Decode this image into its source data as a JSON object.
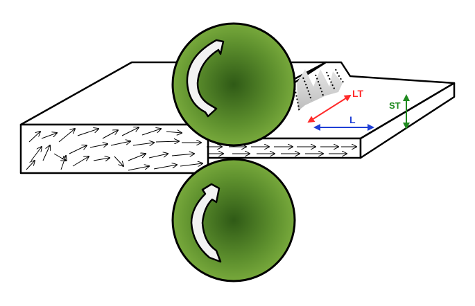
{
  "labels": {
    "lt": "LT",
    "l": "L",
    "st": "ST"
  },
  "colors": {
    "roller_light": "#76a83a",
    "roller_dark": "#2f5a16",
    "lt_arrow": "#ff2a2a",
    "l_arrow": "#1f3fd6",
    "st_arrow": "#1f8a1f",
    "outline": "#000000",
    "plate": "#ffffff",
    "crack_fill": "#d6d6d6"
  },
  "icons": {
    "rotation": "curved-arrow-icon",
    "direction": "double-headed-arrow"
  }
}
